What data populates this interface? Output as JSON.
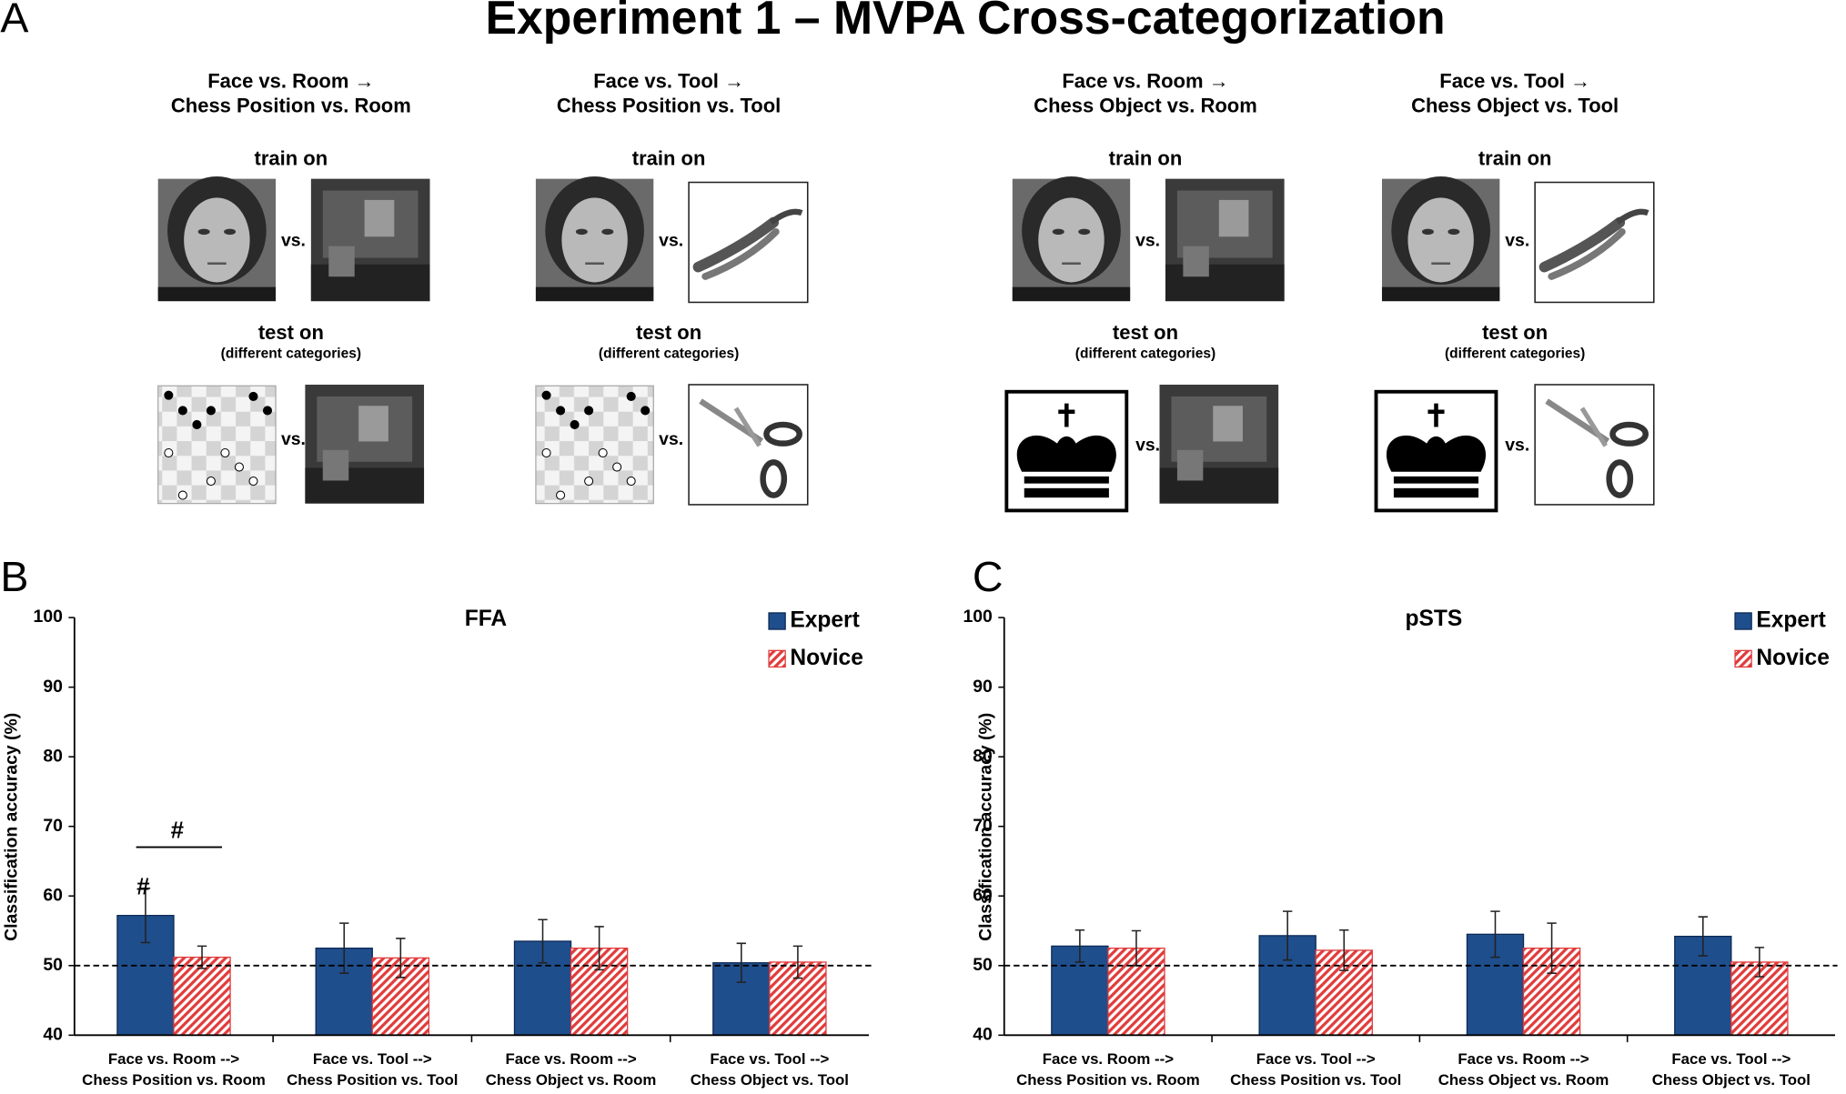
{
  "panel_a": {
    "letter": "A",
    "title": "Experiment 1 –  MVPA Cross-categorization",
    "conditions": [
      {
        "title": [
          "Face vs. Room →",
          "Chess Position vs. Room"
        ],
        "train": "train on",
        "test": "test on",
        "test_note": "(different categories)",
        "vs": "vs."
      },
      {
        "title": [
          "Face vs. Tool →",
          "Chess Position vs. Tool"
        ],
        "train": "train on",
        "test": "test on",
        "test_note": "(different categories)",
        "vs": "vs."
      },
      {
        "title": [
          "Face vs. Room →",
          "Chess Object vs. Room"
        ],
        "train": "train on",
        "test": "test on",
        "test_note": "(different categories)",
        "vs": "vs."
      },
      {
        "title": [
          "Face vs. Tool →",
          "Chess Object vs. Tool"
        ],
        "train": "train on",
        "test": "test on",
        "test_note": "(different categories)",
        "vs": "vs."
      }
    ]
  },
  "chart_data": [
    {
      "type": "bar",
      "panel": "B",
      "title": "FFA",
      "ylabel": "Classification accuracy (%)",
      "categories": [
        [
          "Face vs. Room -->",
          "Chess Position vs. Room"
        ],
        [
          "Face vs. Tool -->",
          "Chess Position vs. Tool"
        ],
        [
          "Face vs. Room -->",
          "Chess Object vs. Room"
        ],
        [
          "Face vs. Tool -->",
          "Chess Object vs. Tool"
        ]
      ],
      "series": [
        {
          "name": "Expert",
          "color": "#1f4e8c",
          "hatch": false,
          "values": [
            57.2,
            52.5,
            53.5,
            50.4
          ],
          "errors": [
            3.9,
            3.6,
            3.1,
            2.8
          ]
        },
        {
          "name": "Novice",
          "color": "#e03c3c",
          "hatch": true,
          "values": [
            51.2,
            51.1,
            52.5,
            50.5
          ],
          "errors": [
            1.6,
            2.8,
            3.1,
            2.3
          ]
        }
      ],
      "ylim": [
        40,
        100
      ],
      "yticks": [
        40,
        50,
        60,
        70,
        80,
        90,
        100
      ],
      "hline": 50,
      "legend": "upper right",
      "annotations": [
        "#",
        "#"
      ]
    },
    {
      "type": "bar",
      "panel": "C",
      "title": "pSTS",
      "ylabel": "Classification accuracy (%)",
      "categories": [
        [
          "Face vs. Room -->",
          "Chess Position vs. Room"
        ],
        [
          "Face vs. Tool -->",
          "Chess Position vs. Tool"
        ],
        [
          "Face vs. Room -->",
          "Chess Object vs. Room"
        ],
        [
          "Face vs. Tool -->",
          "Chess Object vs. Tool"
        ]
      ],
      "series": [
        {
          "name": "Expert",
          "color": "#1f4e8c",
          "hatch": false,
          "values": [
            52.8,
            54.3,
            54.5,
            54.2
          ],
          "errors": [
            2.3,
            3.5,
            3.3,
            2.8
          ]
        },
        {
          "name": "Novice",
          "color": "#e03c3c",
          "hatch": true,
          "values": [
            52.5,
            52.2,
            52.5,
            50.5
          ],
          "errors": [
            2.5,
            2.9,
            3.6,
            2.1
          ]
        }
      ],
      "ylim": [
        40,
        100
      ],
      "yticks": [
        40,
        50,
        60,
        70,
        80,
        90,
        100
      ],
      "hline": 50,
      "legend": "upper right"
    }
  ]
}
